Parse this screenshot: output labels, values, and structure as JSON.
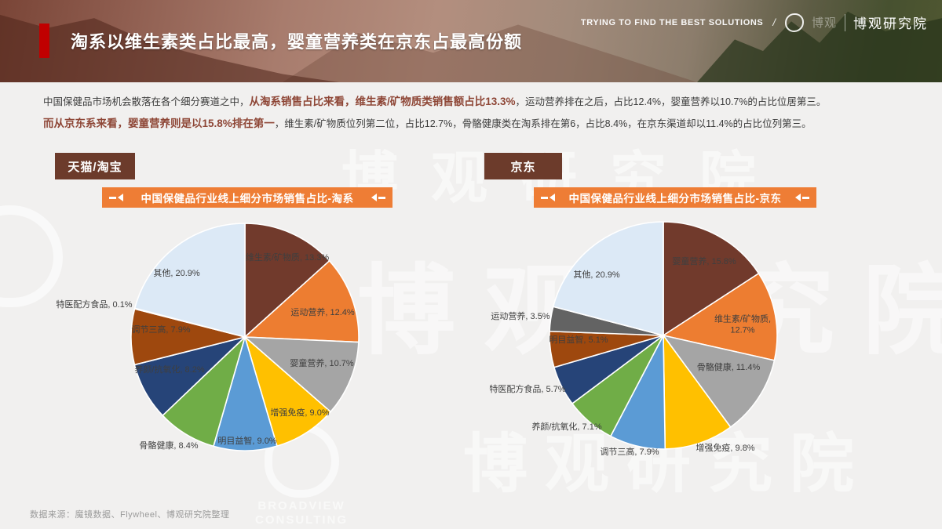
{
  "slide": {
    "title": "淘系以维生素类占比最高，婴童营养类在京东占最高份额",
    "header_right": {
      "tagline": "TRYING TO FIND THE BEST SOLUTIONS",
      "separator": "/",
      "logo_faint": "博观",
      "brand": "博观研究院"
    },
    "intro": {
      "line1": [
        "中国保健品市场机会散落在各个细分赛道之中，",
        "从淘系销售占比来看，维生素/矿物质类销售额占比13.3%",
        "，运动营养排在之后，占比12.4%，婴童营养以10.7%的占比位居第三。"
      ],
      "line2": [
        "而从京东系来看，婴童营养则是以15.8%排在第一",
        "，维生素/矿物质位列第二位，占比12.7%，骨骼健康类在淘系排在第6，占比8.4%，在京东渠道却以11.4%的占比位列第三。"
      ]
    },
    "source": "数据来源：魔镜数据、Flywheel、博观研究院整理",
    "watermark": {
      "cn": "博观研究院",
      "logo_cn": "博观",
      "logo_en_1": "BROADVIEW",
      "logo_en_2": "CONSULTING"
    }
  },
  "colors": {
    "accent_red": "#C00000",
    "tag_brown": "#6C3B2B",
    "banner_orange": "#EE7D35",
    "emphasis_text": "#8E4636",
    "label_text": "#3f3f3f",
    "background": "#f1f0ef"
  },
  "chart_data": [
    {
      "type": "pie",
      "platform_tag": "天猫/淘宝",
      "title": "中国保健品行业线上细分市场销售占比-淘系",
      "unit": "%",
      "start_angle": "top",
      "direction": "clockwise",
      "slices": [
        {
          "name": "维生素/矿物质",
          "value": 13.3,
          "pct": "13.3%",
          "color": "#713A2C"
        },
        {
          "name": "运动营养",
          "value": 12.4,
          "pct": "12.4%",
          "color": "#ED7D31"
        },
        {
          "name": "婴童营养",
          "value": 10.7,
          "pct": "10.7%",
          "color": "#A5A5A5"
        },
        {
          "name": "增强免疫",
          "value": 9.0,
          "pct": "9.0%",
          "color": "#FFC000"
        },
        {
          "name": "明目益智",
          "value": 9.0,
          "pct": "9.0%",
          "color": "#5B9BD5"
        },
        {
          "name": "骨骼健康",
          "value": 8.4,
          "pct": "8.4%",
          "color": "#70AD47"
        },
        {
          "name": "养颜/抗氧化",
          "value": 8.2,
          "pct": "8.2%",
          "color": "#264478"
        },
        {
          "name": "调节三高",
          "value": 7.9,
          "pct": "7.9%",
          "color": "#9E480E"
        },
        {
          "name": "特医配方食品",
          "value": 0.1,
          "pct": "0.1%",
          "color": "#636363"
        },
        {
          "name": "其他",
          "value": 20.9,
          "pct": "20.9%",
          "color": "#DCE9F6"
        }
      ]
    },
    {
      "type": "pie",
      "platform_tag": "京东",
      "title": "中国保健品行业线上细分市场销售占比-京东",
      "unit": "%",
      "start_angle": "top",
      "direction": "clockwise",
      "slices": [
        {
          "name": "婴童营养",
          "value": 15.8,
          "pct": "15.8%",
          "color": "#713A2C"
        },
        {
          "name": "维生素/矿物质",
          "value": 12.7,
          "pct": "12.7%",
          "color": "#ED7D31"
        },
        {
          "name": "骨骼健康",
          "value": 11.4,
          "pct": "11.4%",
          "color": "#A5A5A5"
        },
        {
          "name": "增强免疫",
          "value": 9.8,
          "pct": "9.8%",
          "color": "#FFC000"
        },
        {
          "name": "调节三高",
          "value": 7.9,
          "pct": "7.9%",
          "color": "#5B9BD5"
        },
        {
          "name": "养颜/抗氧化",
          "value": 7.1,
          "pct": "7.1%",
          "color": "#70AD47"
        },
        {
          "name": "特医配方食品",
          "value": 5.7,
          "pct": "5.7%",
          "color": "#264478"
        },
        {
          "name": "明目益智",
          "value": 5.1,
          "pct": "5.1%",
          "color": "#9E480E"
        },
        {
          "name": "运动营养",
          "value": 3.5,
          "pct": "3.5%",
          "color": "#636363"
        },
        {
          "name": "其他",
          "value": 20.9,
          "pct": "20.9%",
          "color": "#DCE9F6"
        }
      ]
    }
  ]
}
